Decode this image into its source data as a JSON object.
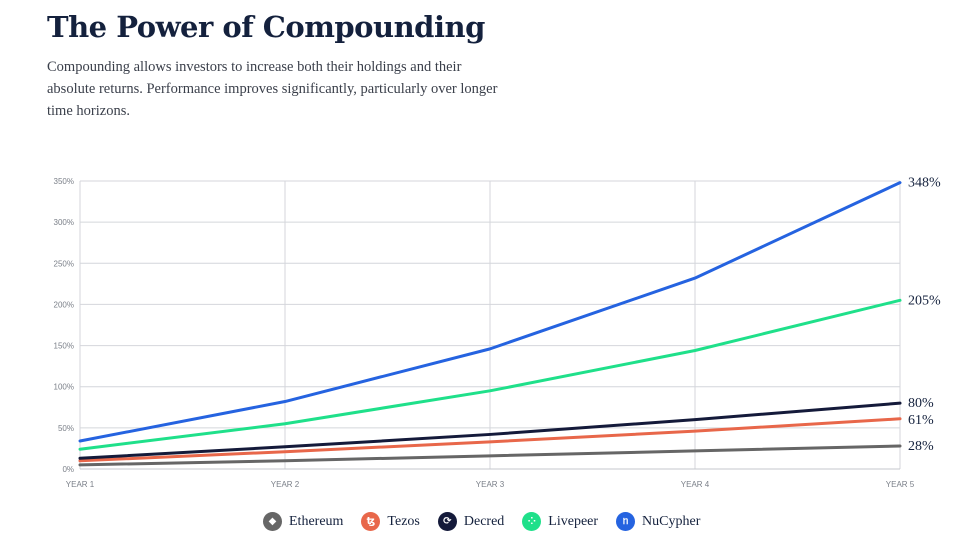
{
  "header": {
    "title": "The Power of Compounding",
    "subtitle": "Compounding allows investors to increase both their holdings and their absolute returns. Performance improves significantly, particularly over longer time horizons."
  },
  "chart_data": {
    "type": "line",
    "categories": [
      "YEAR 1",
      "YEAR 2",
      "YEAR 3",
      "YEAR 4",
      "YEAR 5"
    ],
    "y_ticks": [
      "0%",
      "50%",
      "100%",
      "150%",
      "200%",
      "250%",
      "300%",
      "350%"
    ],
    "ylim": [
      0,
      350
    ],
    "grid": true,
    "legend_position": "bottom",
    "series": [
      {
        "name": "Ethereum",
        "color": "#666666",
        "icon": "ethereum-icon",
        "glyph": "◆",
        "values": [
          5,
          10,
          16,
          22,
          28
        ],
        "end_label": "28%"
      },
      {
        "name": "Tezos",
        "color": "#e8674a",
        "icon": "tezos-icon",
        "glyph": "ꜩ",
        "values": [
          10,
          21,
          33,
          46,
          61
        ],
        "end_label": "61%"
      },
      {
        "name": "Decred",
        "color": "#141a3a",
        "icon": "decred-icon",
        "glyph": "⟳",
        "values": [
          13,
          27,
          42,
          60,
          80
        ],
        "end_label": "80%"
      },
      {
        "name": "Livepeer",
        "color": "#1fe08a",
        "icon": "livepeer-icon",
        "glyph": "⁘",
        "values": [
          24,
          55,
          95,
          144,
          205
        ],
        "end_label": "205%"
      },
      {
        "name": "NuCypher",
        "color": "#2563e0",
        "icon": "nucypher-icon",
        "glyph": "ᥒ",
        "values": [
          34,
          82,
          146,
          232,
          348
        ],
        "end_label": "348%"
      }
    ]
  }
}
